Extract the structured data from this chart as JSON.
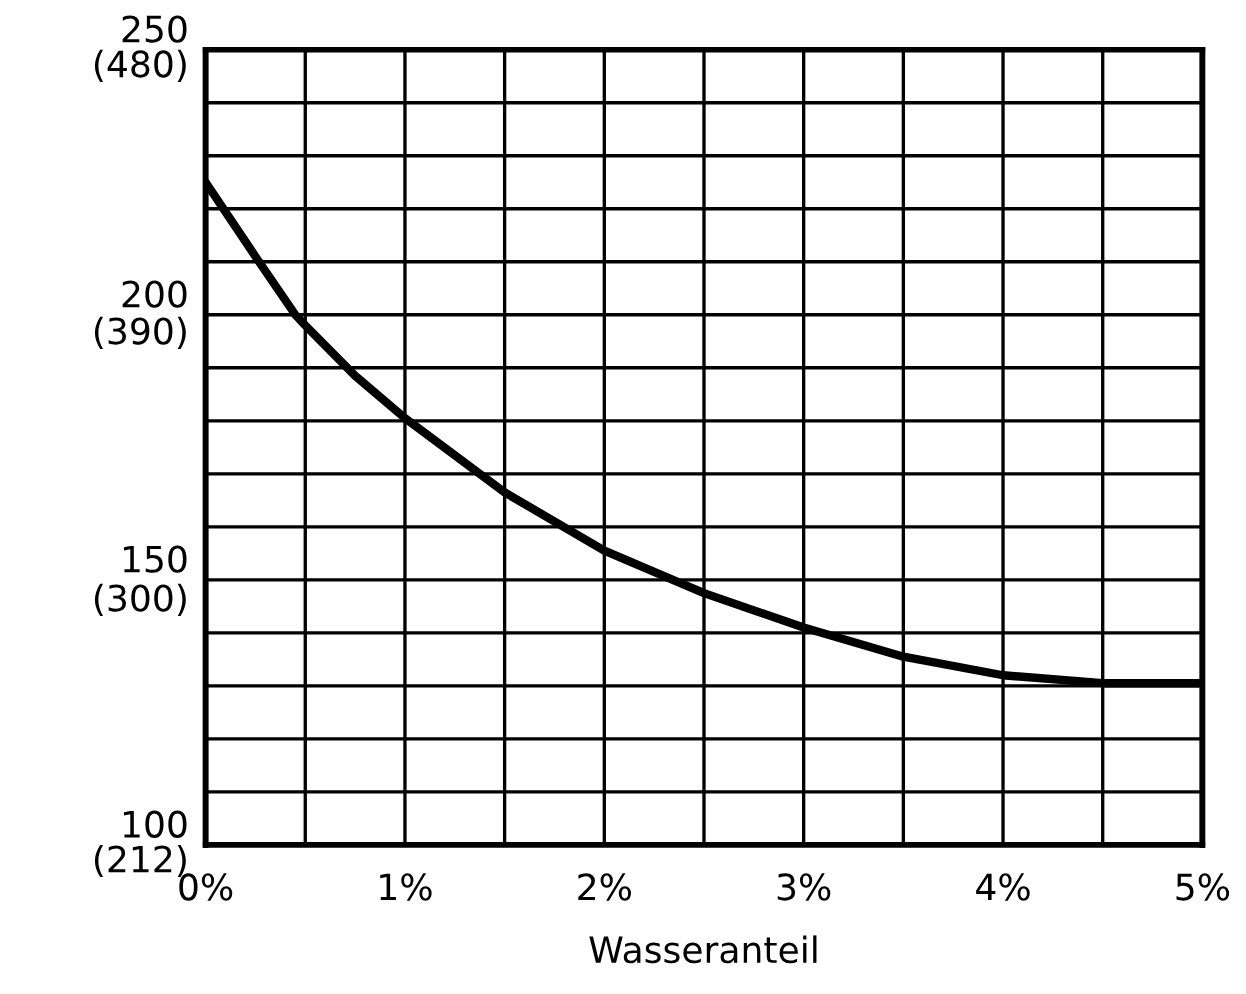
{
  "chart_data": {
    "type": "line",
    "xlabel": "Wasseranteil",
    "x": [
      0,
      0.25,
      0.45,
      0.5,
      0.75,
      1,
      1.5,
      2,
      2.5,
      3,
      3.5,
      4,
      4.5,
      5
    ],
    "series": [
      {
        "color": "#000000",
        "values": [
          225,
          211,
          200,
          198,
          188.5,
          180.5,
          166.5,
          155.5,
          147.5,
          141,
          135.5,
          132,
          130.5,
          130.5
        ]
      }
    ],
    "xlim": [
      0,
      5
    ],
    "ylim": [
      100,
      250
    ],
    "xticks": [
      {
        "value": 0,
        "label": "0%"
      },
      {
        "value": 0.5,
        "label": null
      },
      {
        "value": 1,
        "label": "1%"
      },
      {
        "value": 1.5,
        "label": null
      },
      {
        "value": 2,
        "label": "2%"
      },
      {
        "value": 2.5,
        "label": null
      },
      {
        "value": 3,
        "label": "3%"
      },
      {
        "value": 3.5,
        "label": null
      },
      {
        "value": 4,
        "label": "4%"
      },
      {
        "value": 4.5,
        "label": null
      },
      {
        "value": 5,
        "label": "5%"
      }
    ],
    "yticks": [
      100,
      {
        "value": 110,
        "label": null
      },
      {
        "value": 120,
        "label": null
      },
      {
        "value": 130,
        "label": null
      },
      {
        "value": 140,
        "label": null
      },
      150,
      {
        "value": 160,
        "label": null
      },
      {
        "value": 170,
        "label": null
      },
      {
        "value": 180,
        "label": null
      },
      {
        "value": 190,
        "label": null
      },
      200,
      {
        "value": 210,
        "label": null
      },
      {
        "value": 220,
        "label": null
      },
      {
        "value": 230,
        "label": null
      },
      {
        "value": 240,
        "label": null
      },
      250
    ],
    "y2lim": [
      212,
      480
    ],
    "y2ticks": [
      {
        "value": 212,
        "label": "(212)"
      },
      {
        "value": 300,
        "label": "(300)"
      },
      {
        "value": 390,
        "label": "(390)"
      },
      {
        "value": 480,
        "label": "(480)"
      }
    ],
    "grid": true,
    "marker": "none",
    "line_style": "solid",
    "legend": false
  }
}
